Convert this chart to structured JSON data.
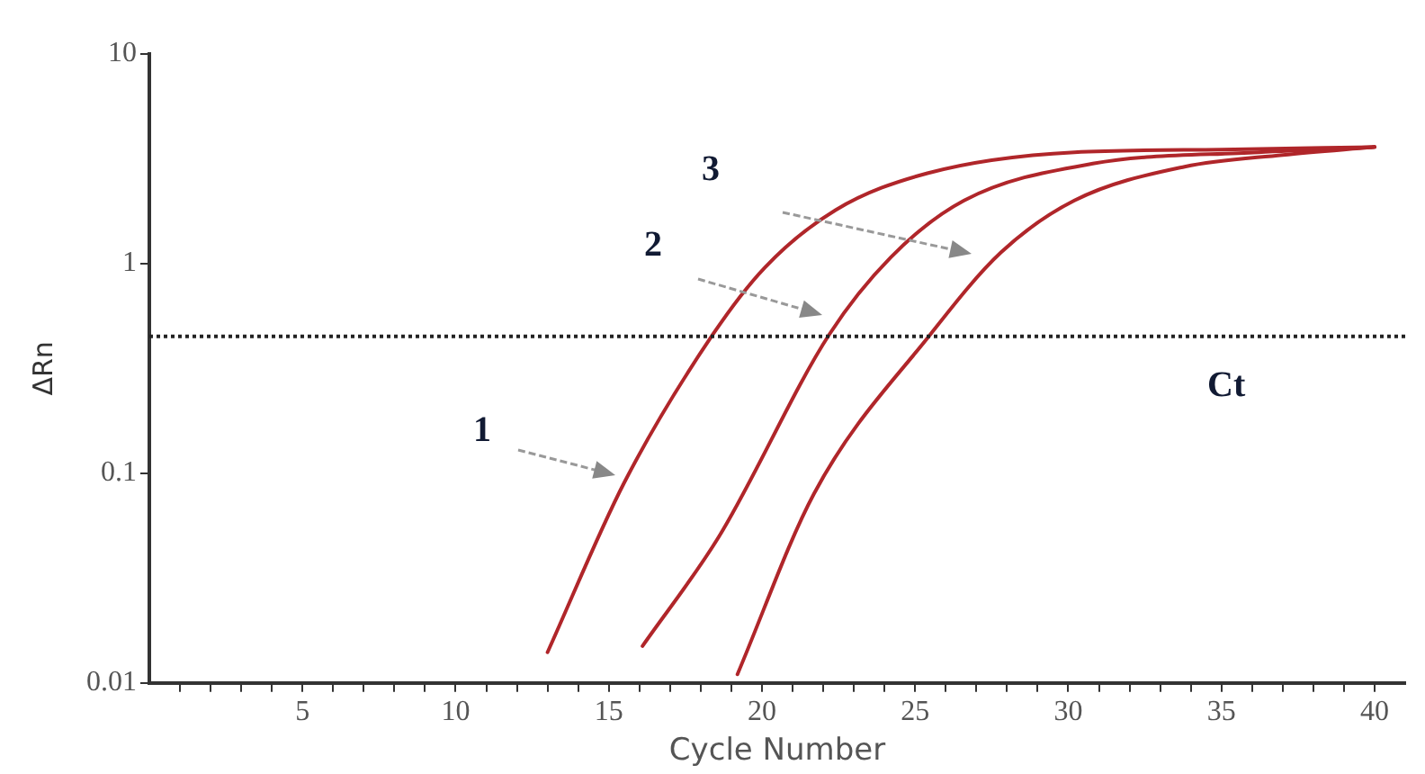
{
  "chart_data": {
    "type": "line",
    "xlabel": "Cycle Number",
    "ylabel": "ΔRn",
    "log": "y",
    "grid": false,
    "legend": false,
    "marker": "none",
    "line_style": "solid",
    "xlim": [
      0,
      41
    ],
    "ylim": [
      0.01,
      10
    ],
    "xticks": [
      {
        "value": 1,
        "label": null
      },
      {
        "value": 2,
        "label": null
      },
      {
        "value": 3,
        "label": null
      },
      {
        "value": 4,
        "label": null
      },
      5,
      {
        "value": 6,
        "label": null
      },
      {
        "value": 7,
        "label": null
      },
      {
        "value": 8,
        "label": null
      },
      {
        "value": 9,
        "label": null
      },
      10,
      {
        "value": 11,
        "label": null
      },
      {
        "value": 12,
        "label": null
      },
      {
        "value": 13,
        "label": null
      },
      {
        "value": 14,
        "label": null
      },
      15,
      {
        "value": 16,
        "label": null
      },
      {
        "value": 17,
        "label": null
      },
      {
        "value": 18,
        "label": null
      },
      {
        "value": 19,
        "label": null
      },
      20,
      {
        "value": 21,
        "label": null
      },
      {
        "value": 22,
        "label": null
      },
      {
        "value": 23,
        "label": null
      },
      {
        "value": 24,
        "label": null
      },
      25,
      {
        "value": 26,
        "label": null
      },
      {
        "value": 27,
        "label": null
      },
      {
        "value": 28,
        "label": null
      },
      {
        "value": 29,
        "label": null
      },
      30,
      {
        "value": 31,
        "label": null
      },
      {
        "value": 32,
        "label": null
      },
      {
        "value": 33,
        "label": null
      },
      {
        "value": 34,
        "label": null
      },
      35,
      {
        "value": 36,
        "label": null
      },
      {
        "value": 37,
        "label": null
      },
      {
        "value": 38,
        "label": null
      },
      {
        "value": 39,
        "label": null
      },
      40
    ],
    "yticks": [
      0.01,
      0.1,
      1,
      10
    ],
    "series": [
      {
        "color": "#b0262a",
        "x": [
          13.0,
          15.5,
          18.4,
          20.1,
          22.4,
          25.4,
          30.2,
          35,
          40
        ],
        "values": [
          0.014,
          0.09,
          0.46,
          0.96,
          1.8,
          2.7,
          3.4,
          3.5,
          3.6
        ]
      },
      {
        "color": "#b0262a",
        "x": [
          16.1,
          18.6,
          22.2,
          24.2,
          26.6,
          30.8,
          36.2,
          40
        ],
        "values": [
          0.015,
          0.05,
          0.46,
          1.07,
          2.0,
          3.0,
          3.4,
          3.6
        ]
      },
      {
        "color": "#b0262a",
        "x": [
          19.2,
          21.7,
          25.5,
          27.8,
          30.2,
          33.8,
          37,
          40
        ],
        "values": [
          0.011,
          0.08,
          0.46,
          1.13,
          2.0,
          2.9,
          3.3,
          3.6
        ]
      }
    ],
    "ref_lines": [
      {
        "axis": "y",
        "value": 0.45,
        "label": "Ct",
        "color": "#222222",
        "line_style": "dotted"
      }
    ],
    "annotations": [
      "1",
      "2",
      "3"
    ]
  }
}
